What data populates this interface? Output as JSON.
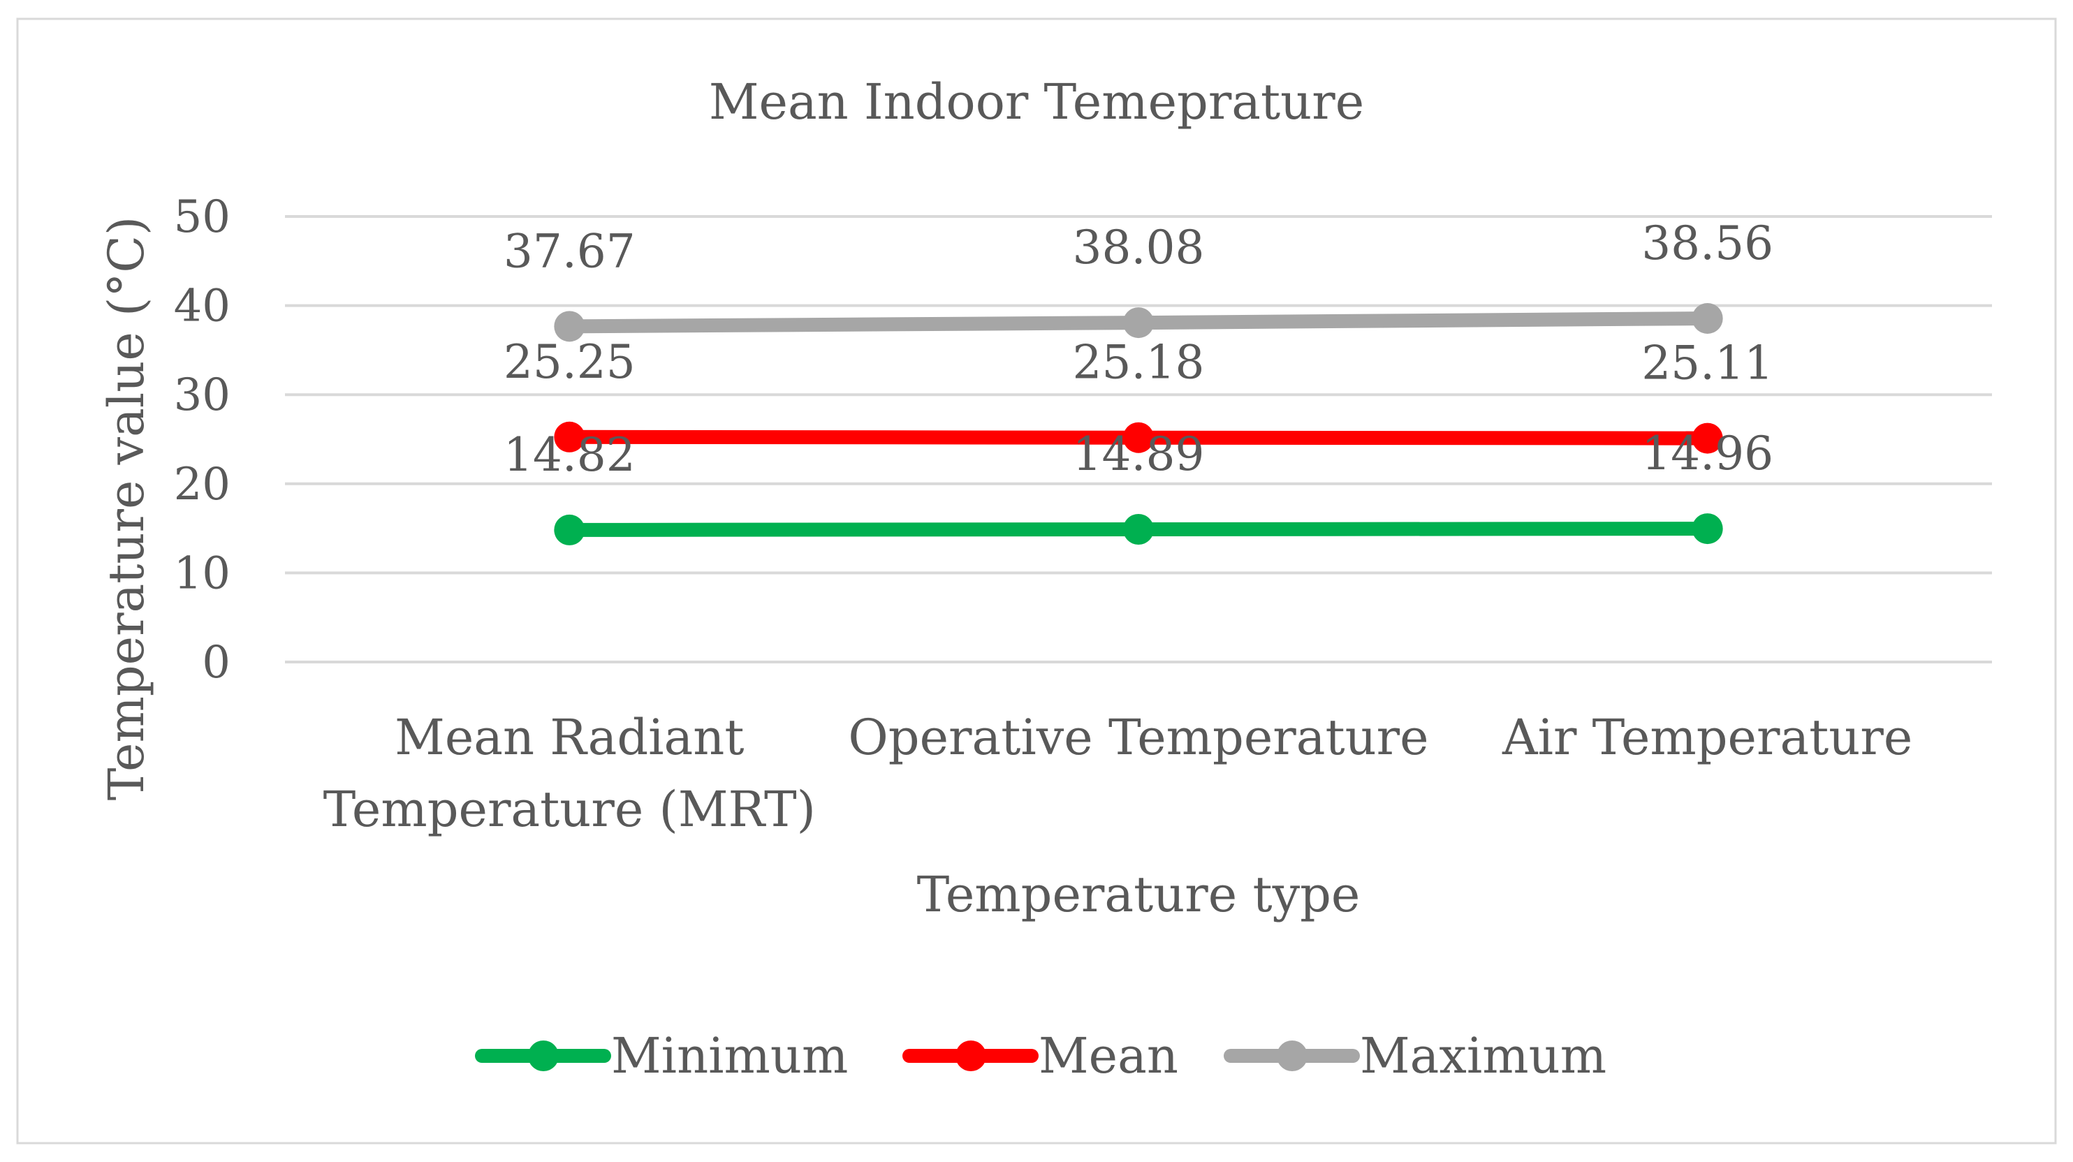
{
  "chart_data": {
    "type": "line",
    "title": "Mean Indoor Temeprature",
    "xlabel": "Temperature type",
    "ylabel": "Temperature value (°C)",
    "categories": [
      [
        "Mean Radiant",
        "Temperature (MRT)"
      ],
      [
        "Operative Temperature"
      ],
      [
        "Air Temperature"
      ]
    ],
    "ylim": [
      0,
      50
    ],
    "yticks": [
      "0",
      "10",
      "20",
      "30",
      "40",
      "50"
    ],
    "grid": true,
    "legend": "bottom",
    "series": [
      {
        "name": "Minimum",
        "color": "#00b050",
        "values": [
          14.82,
          14.89,
          14.96
        ],
        "labels": [
          "14.82",
          "14.89",
          "14.96"
        ]
      },
      {
        "name": "Mean",
        "color": "#ff0000",
        "values": [
          25.25,
          25.18,
          25.11
        ],
        "labels": [
          "25.25",
          "25.18",
          "25.11"
        ]
      },
      {
        "name": "Maximum",
        "color": "#a6a6a6",
        "values": [
          37.67,
          38.08,
          38.56
        ],
        "labels": [
          "37.67",
          "38.08",
          "38.56"
        ]
      }
    ],
    "colors": {
      "text": "#595959",
      "grid": "#d9d9d9",
      "border": "#d9d9d9"
    }
  }
}
